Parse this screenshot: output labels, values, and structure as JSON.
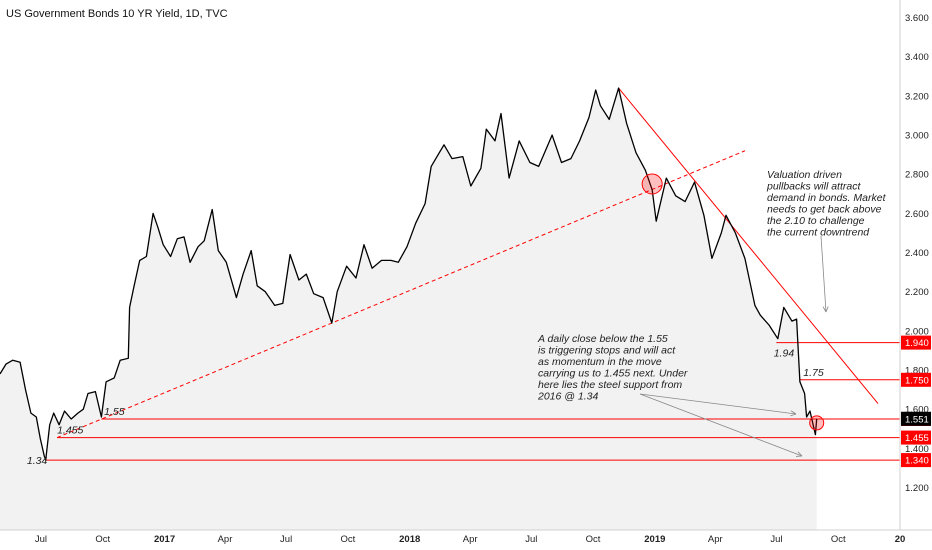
{
  "title": "US Government Bonds 10 YR Yield, 1D, TVC",
  "chart_data": {
    "type": "line",
    "ylim": [
      1.2,
      3.6
    ],
    "yticks": [
      1.2,
      1.4,
      1.6,
      1.8,
      2.0,
      2.2,
      2.4,
      2.6,
      2.8,
      3.0,
      3.2,
      3.4,
      3.6
    ],
    "ytick_labels": [
      "1.200",
      "1.400",
      "1.600",
      "1.800",
      "2.000",
      "2.200",
      "2.400",
      "2.600",
      "2.800",
      "3.000",
      "3.200",
      "3.400",
      "3.600"
    ],
    "xlim": [
      "2016-05-01",
      "2020-01-01"
    ],
    "xticks": [
      {
        "date": "2016-07-01",
        "label": "Jul",
        "bold": false
      },
      {
        "date": "2016-10-01",
        "label": "Oct",
        "bold": false
      },
      {
        "date": "2017-01-01",
        "label": "2017",
        "bold": true
      },
      {
        "date": "2017-04-01",
        "label": "Apr",
        "bold": false
      },
      {
        "date": "2017-07-01",
        "label": "Jul",
        "bold": false
      },
      {
        "date": "2017-10-01",
        "label": "Oct",
        "bold": false
      },
      {
        "date": "2018-01-01",
        "label": "2018",
        "bold": true
      },
      {
        "date": "2018-04-01",
        "label": "Apr",
        "bold": false
      },
      {
        "date": "2018-07-01",
        "label": "Jul",
        "bold": false
      },
      {
        "date": "2018-10-01",
        "label": "Oct",
        "bold": false
      },
      {
        "date": "2019-01-01",
        "label": "2019",
        "bold": true
      },
      {
        "date": "2019-04-01",
        "label": "Apr",
        "bold": false
      },
      {
        "date": "2019-07-01",
        "label": "Jul",
        "bold": false
      },
      {
        "date": "2019-10-01",
        "label": "Oct",
        "bold": false
      },
      {
        "date": "2020-01-01",
        "label": "20",
        "bold": true
      }
    ],
    "series": [
      {
        "values": [
          {
            "x": "2016-05-01",
            "y": 1.78
          },
          {
            "x": "2016-05-10",
            "y": 1.83
          },
          {
            "x": "2016-05-20",
            "y": 1.85
          },
          {
            "x": "2016-05-31",
            "y": 1.84
          },
          {
            "x": "2016-06-08",
            "y": 1.7
          },
          {
            "x": "2016-06-16",
            "y": 1.58
          },
          {
            "x": "2016-06-24",
            "y": 1.56
          },
          {
            "x": "2016-06-30",
            "y": 1.45
          },
          {
            "x": "2016-07-06",
            "y": 1.36
          },
          {
            "x": "2016-07-08",
            "y": 1.34
          },
          {
            "x": "2016-07-14",
            "y": 1.52
          },
          {
            "x": "2016-07-20",
            "y": 1.58
          },
          {
            "x": "2016-07-28",
            "y": 1.52
          },
          {
            "x": "2016-08-05",
            "y": 1.59
          },
          {
            "x": "2016-08-15",
            "y": 1.55
          },
          {
            "x": "2016-08-25",
            "y": 1.58
          },
          {
            "x": "2016-09-02",
            "y": 1.6
          },
          {
            "x": "2016-09-09",
            "y": 1.68
          },
          {
            "x": "2016-09-20",
            "y": 1.69
          },
          {
            "x": "2016-09-29",
            "y": 1.56
          },
          {
            "x": "2016-10-06",
            "y": 1.74
          },
          {
            "x": "2016-10-18",
            "y": 1.76
          },
          {
            "x": "2016-10-27",
            "y": 1.85
          },
          {
            "x": "2016-11-08",
            "y": 1.86
          },
          {
            "x": "2016-11-10",
            "y": 2.12
          },
          {
            "x": "2016-11-16",
            "y": 2.22
          },
          {
            "x": "2016-11-25",
            "y": 2.36
          },
          {
            "x": "2016-12-05",
            "y": 2.38
          },
          {
            "x": "2016-12-15",
            "y": 2.6
          },
          {
            "x": "2016-12-22",
            "y": 2.53
          },
          {
            "x": "2016-12-30",
            "y": 2.44
          },
          {
            "x": "2017-01-10",
            "y": 2.38
          },
          {
            "x": "2017-01-20",
            "y": 2.47
          },
          {
            "x": "2017-01-30",
            "y": 2.48
          },
          {
            "x": "2017-02-08",
            "y": 2.35
          },
          {
            "x": "2017-02-20",
            "y": 2.43
          },
          {
            "x": "2017-03-01",
            "y": 2.46
          },
          {
            "x": "2017-03-13",
            "y": 2.62
          },
          {
            "x": "2017-03-22",
            "y": 2.41
          },
          {
            "x": "2017-04-03",
            "y": 2.35
          },
          {
            "x": "2017-04-18",
            "y": 2.17
          },
          {
            "x": "2017-04-28",
            "y": 2.29
          },
          {
            "x": "2017-05-10",
            "y": 2.41
          },
          {
            "x": "2017-05-19",
            "y": 2.23
          },
          {
            "x": "2017-05-31",
            "y": 2.2
          },
          {
            "x": "2017-06-14",
            "y": 2.13
          },
          {
            "x": "2017-06-26",
            "y": 2.14
          },
          {
            "x": "2017-07-07",
            "y": 2.39
          },
          {
            "x": "2017-07-20",
            "y": 2.26
          },
          {
            "x": "2017-07-31",
            "y": 2.29
          },
          {
            "x": "2017-08-11",
            "y": 2.19
          },
          {
            "x": "2017-08-25",
            "y": 2.17
          },
          {
            "x": "2017-09-07",
            "y": 2.04
          },
          {
            "x": "2017-09-15",
            "y": 2.2
          },
          {
            "x": "2017-09-29",
            "y": 2.33
          },
          {
            "x": "2017-10-13",
            "y": 2.27
          },
          {
            "x": "2017-10-25",
            "y": 2.44
          },
          {
            "x": "2017-11-06",
            "y": 2.32
          },
          {
            "x": "2017-11-20",
            "y": 2.36
          },
          {
            "x": "2017-12-04",
            "y": 2.36
          },
          {
            "x": "2017-12-15",
            "y": 2.35
          },
          {
            "x": "2017-12-28",
            "y": 2.43
          },
          {
            "x": "2018-01-10",
            "y": 2.55
          },
          {
            "x": "2018-01-24",
            "y": 2.65
          },
          {
            "x": "2018-02-02",
            "y": 2.84
          },
          {
            "x": "2018-02-14",
            "y": 2.91
          },
          {
            "x": "2018-02-21",
            "y": 2.95
          },
          {
            "x": "2018-03-05",
            "y": 2.88
          },
          {
            "x": "2018-03-21",
            "y": 2.89
          },
          {
            "x": "2018-04-02",
            "y": 2.74
          },
          {
            "x": "2018-04-17",
            "y": 2.83
          },
          {
            "x": "2018-04-25",
            "y": 3.03
          },
          {
            "x": "2018-05-08",
            "y": 2.97
          },
          {
            "x": "2018-05-17",
            "y": 3.11
          },
          {
            "x": "2018-05-29",
            "y": 2.78
          },
          {
            "x": "2018-06-13",
            "y": 2.97
          },
          {
            "x": "2018-06-29",
            "y": 2.86
          },
          {
            "x": "2018-07-12",
            "y": 2.84
          },
          {
            "x": "2018-08-01",
            "y": 3.0
          },
          {
            "x": "2018-08-15",
            "y": 2.86
          },
          {
            "x": "2018-08-29",
            "y": 2.88
          },
          {
            "x": "2018-09-11",
            "y": 2.97
          },
          {
            "x": "2018-09-25",
            "y": 3.09
          },
          {
            "x": "2018-10-05",
            "y": 3.23
          },
          {
            "x": "2018-10-12",
            "y": 3.15
          },
          {
            "x": "2018-10-25",
            "y": 3.08
          },
          {
            "x": "2018-11-08",
            "y": 3.24
          },
          {
            "x": "2018-11-20",
            "y": 3.06
          },
          {
            "x": "2018-12-04",
            "y": 2.91
          },
          {
            "x": "2018-12-18",
            "y": 2.82
          },
          {
            "x": "2018-12-28",
            "y": 2.72
          },
          {
            "x": "2019-01-03",
            "y": 2.56
          },
          {
            "x": "2019-01-18",
            "y": 2.78
          },
          {
            "x": "2019-02-01",
            "y": 2.69
          },
          {
            "x": "2019-02-15",
            "y": 2.66
          },
          {
            "x": "2019-03-01",
            "y": 2.76
          },
          {
            "x": "2019-03-15",
            "y": 2.59
          },
          {
            "x": "2019-03-27",
            "y": 2.37
          },
          {
            "x": "2019-04-10",
            "y": 2.5
          },
          {
            "x": "2019-04-17",
            "y": 2.59
          },
          {
            "x": "2019-05-01",
            "y": 2.5
          },
          {
            "x": "2019-05-15",
            "y": 2.37
          },
          {
            "x": "2019-05-30",
            "y": 2.13
          },
          {
            "x": "2019-06-07",
            "y": 2.08
          },
          {
            "x": "2019-06-20",
            "y": 2.03
          },
          {
            "x": "2019-07-03",
            "y": 1.96
          },
          {
            "x": "2019-07-12",
            "y": 2.12
          },
          {
            "x": "2019-07-24",
            "y": 2.05
          },
          {
            "x": "2019-07-31",
            "y": 2.06
          },
          {
            "x": "2019-08-05",
            "y": 1.74
          },
          {
            "x": "2019-08-12",
            "y": 1.68
          },
          {
            "x": "2019-08-15",
            "y": 1.56
          },
          {
            "x": "2019-08-20",
            "y": 1.59
          },
          {
            "x": "2019-08-28",
            "y": 1.47
          },
          {
            "x": "2019-08-30",
            "y": 1.551
          }
        ]
      }
    ],
    "current_price_label": "1.551",
    "price_tags": [
      {
        "value": 1.94,
        "label": "1.940"
      },
      {
        "value": 1.75,
        "label": "1.750"
      },
      {
        "value": 1.55,
        "label": "1.550"
      },
      {
        "value": 1.455,
        "label": "1.455"
      },
      {
        "value": 1.34,
        "label": "1.340"
      }
    ],
    "level_labels": [
      {
        "text": "1.94",
        "x": "2019-06-27",
        "y": 1.94
      },
      {
        "text": "1.75",
        "x": "2019-08-10",
        "y": 1.75
      },
      {
        "text": "1.55",
        "x": "2016-10-03",
        "y": 1.55
      },
      {
        "text": "1.455",
        "x": "2016-07-25",
        "y": 1.455
      },
      {
        "text": "1.34",
        "x": "2016-06-10",
        "y": 1.34
      }
    ],
    "annotations": [
      {
        "lines": [
          "Valuation driven",
          "pullbacks will attract",
          "demand in bonds. Market",
          "needs to get back above",
          "the 2.10 to challenge",
          "the current downtrend"
        ]
      },
      {
        "lines": [
          "A daily close below the 1.55",
          "is triggering stops and will act",
          "as momentum in the move",
          "carrying us to 1.455 next. Under",
          "here lies the steel support from",
          "2016 @ 1.34"
        ]
      }
    ],
    "colors": {
      "price_line": "#000000",
      "area_fill": "#f2f2f2",
      "trend_lines": "#ff0000",
      "tag_bg": "#ff0000",
      "tag_text": "#ffffff",
      "current_tag_bg": "#000000",
      "circle": "#ff0000"
    }
  }
}
